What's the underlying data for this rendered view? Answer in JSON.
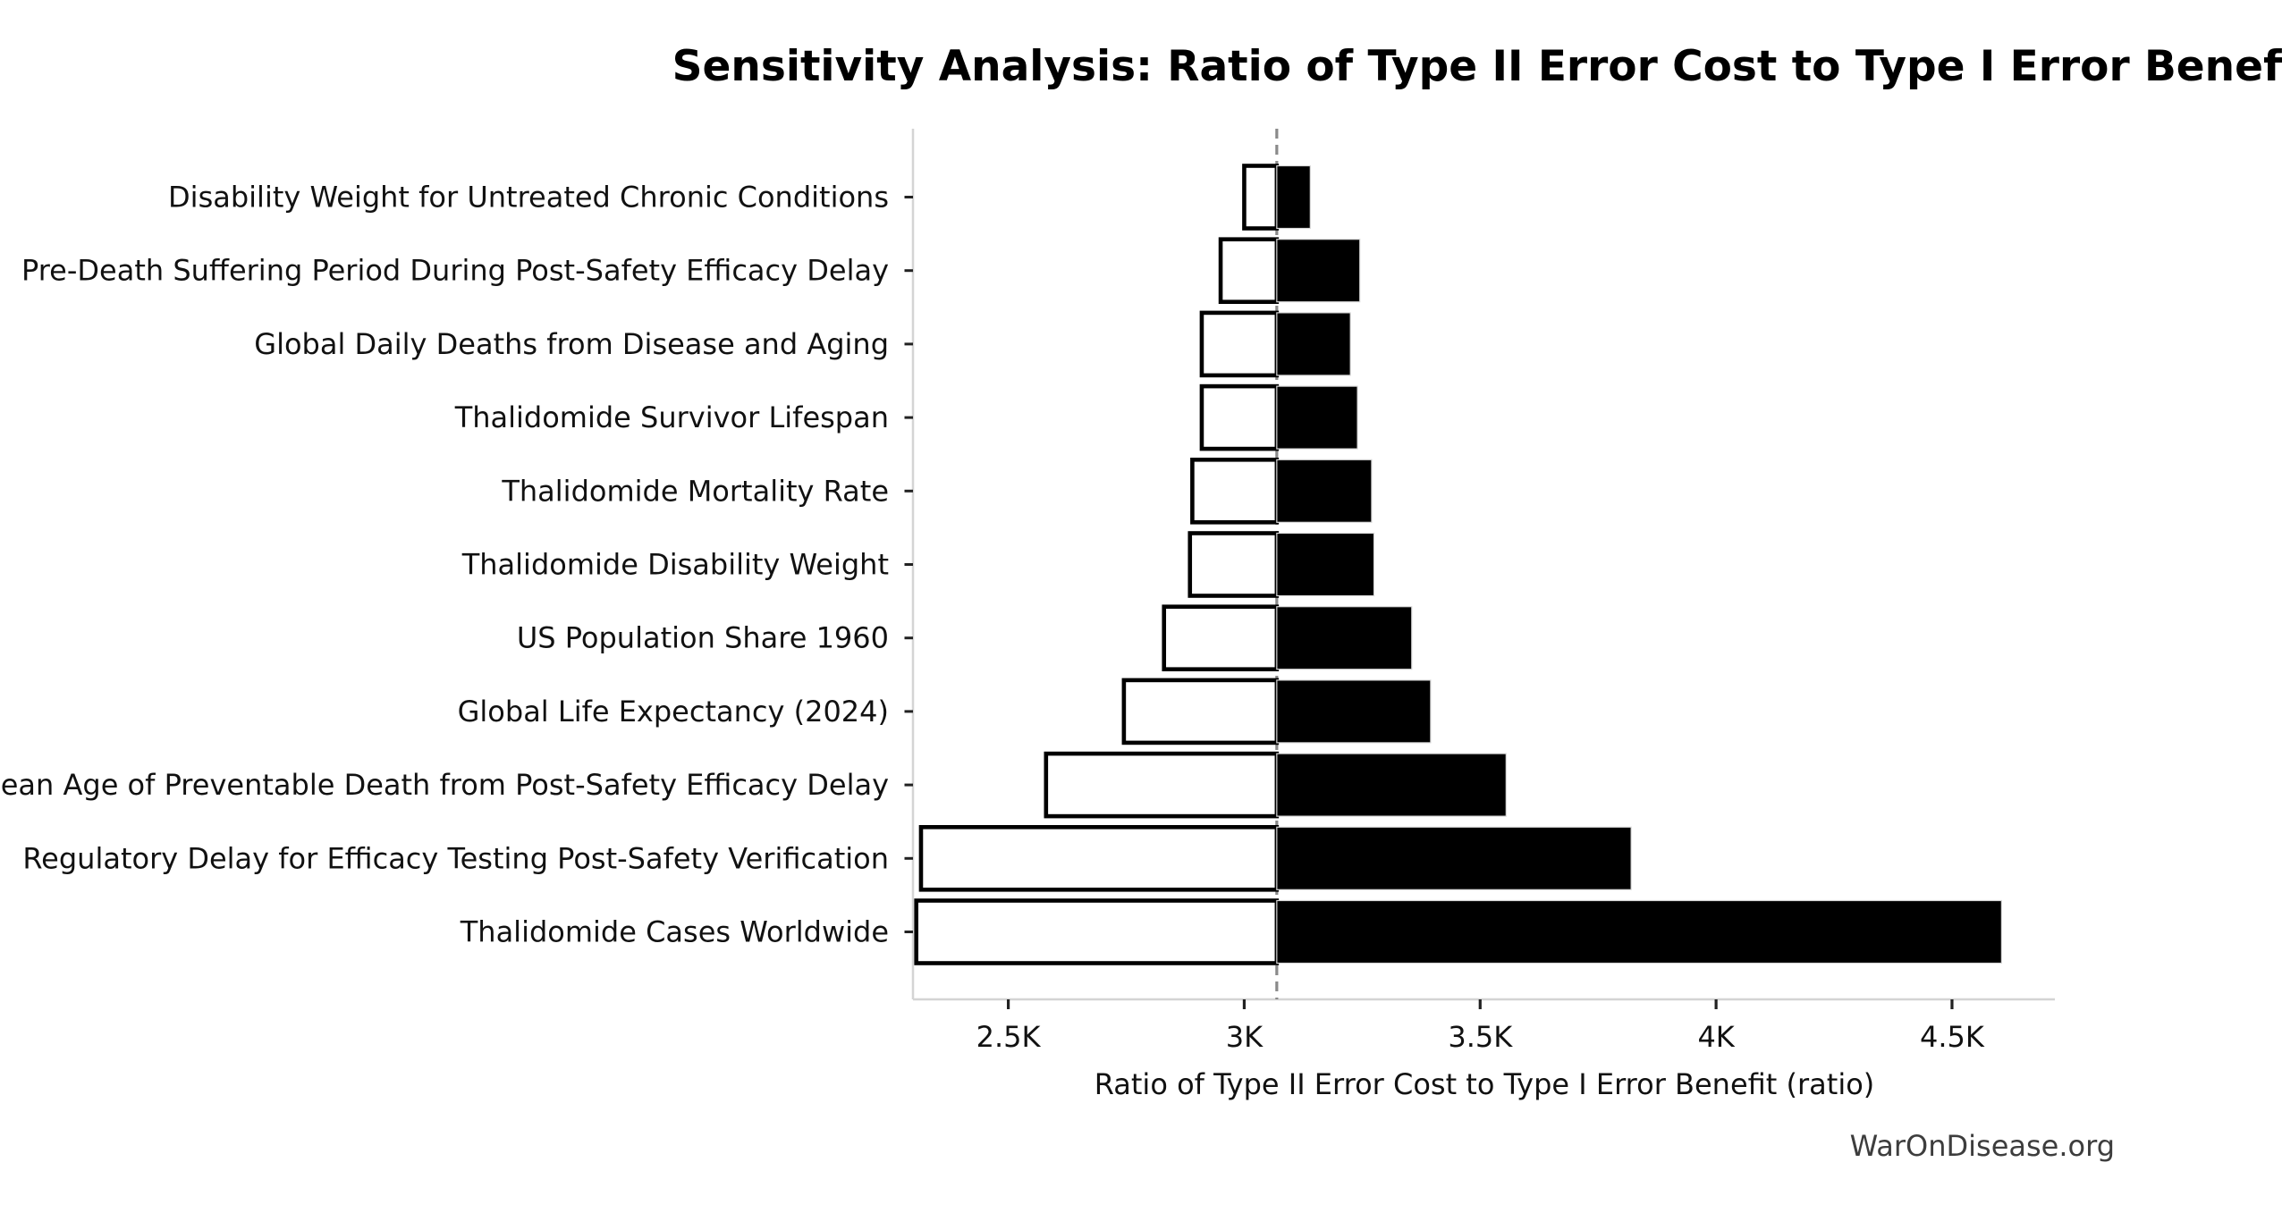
{
  "page": {
    "title": "Sensitivity Analysis: Ratio of Type II Error Cost to Type I Error Benefit",
    "watermark": "WarOnDisease.org"
  },
  "chart_data": {
    "type": "bar",
    "variant": "tornado-sensitivity",
    "orientation": "horizontal",
    "title": "Sensitivity Analysis: Ratio of Type II Error Cost to Type I Error Benefit",
    "xlabel": "Ratio of Type II Error Cost to Type I Error Benefit (ratio)",
    "ylabel": "",
    "grid": false,
    "legend_position": "none",
    "xlim": [
      2298,
      4718
    ],
    "base_value": 3069,
    "base_line_style": "dashed",
    "x_ticks": [
      {
        "value": 2500,
        "label": "2.5K"
      },
      {
        "value": 3000,
        "label": "3K"
      },
      {
        "value": 3500,
        "label": "3.5K"
      },
      {
        "value": 4000,
        "label": "4K"
      },
      {
        "value": 4500,
        "label": "4.5K"
      }
    ],
    "rows": [
      {
        "label": "Disability Weight for Untreated Chronic Conditions",
        "low": 3000,
        "high": 3140
      },
      {
        "label": "Pre-Death Suffering Period During Post-Safety Efficacy Delay",
        "low": 2950,
        "high": 3245
      },
      {
        "label": "Global Daily Deaths from Disease and Aging",
        "low": 2910,
        "high": 3225
      },
      {
        "label": "Thalidomide Survivor Lifespan",
        "low": 2910,
        "high": 3240
      },
      {
        "label": "Thalidomide Mortality Rate",
        "low": 2890,
        "high": 3270
      },
      {
        "label": "Thalidomide Disability Weight",
        "low": 2885,
        "high": 3275
      },
      {
        "label": "US Population Share 1960",
        "low": 2830,
        "high": 3355
      },
      {
        "label": "Global Life Expectancy (2024)",
        "low": 2745,
        "high": 3395
      },
      {
        "label": "Mean Age of Preventable Death from Post-Safety Efficacy Delay",
        "low": 2580,
        "high": 3555
      },
      {
        "label": "Regulatory Delay for Efficacy Testing Post-Safety Verification",
        "low": 2315,
        "high": 3820
      },
      {
        "label": "Thalidomide Cases Worldwide",
        "low": 2305,
        "high": 4605
      }
    ],
    "colors": {
      "low_bar_fill": "#ffffff",
      "low_bar_edge": "#000000",
      "high_bar_fill": "#000000",
      "high_bar_edge": "#d9d9d9",
      "baseline_dash": "#8a8a8a",
      "spine": "#d4d4d4",
      "tick_mark": "#222222",
      "text": "#111111"
    }
  }
}
